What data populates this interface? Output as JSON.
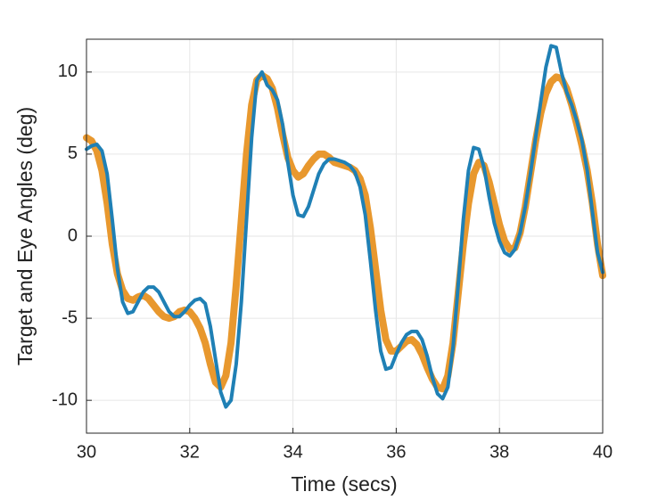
{
  "chart_data": {
    "type": "line",
    "xlabel": "Time (secs)",
    "ylabel": "Target and Eye Angles (deg)",
    "x": [
      30.0,
      30.1,
      30.2,
      30.3,
      30.4,
      30.5,
      30.6,
      30.7,
      30.8,
      30.9,
      31.0,
      31.1,
      31.2,
      31.3,
      31.4,
      31.5,
      31.6,
      31.7,
      31.8,
      31.9,
      32.0,
      32.1,
      32.2,
      32.3,
      32.4,
      32.5,
      32.6,
      32.7,
      32.8,
      32.9,
      33.0,
      33.1,
      33.2,
      33.3,
      33.4,
      33.5,
      33.6,
      33.7,
      33.8,
      33.9,
      34.0,
      34.1,
      34.2,
      34.3,
      34.4,
      34.5,
      34.6,
      34.7,
      34.8,
      34.9,
      35.0,
      35.1,
      35.2,
      35.3,
      35.4,
      35.5,
      35.6,
      35.7,
      35.8,
      35.9,
      36.0,
      36.1,
      36.2,
      36.3,
      36.4,
      36.5,
      36.6,
      36.7,
      36.8,
      36.9,
      37.0,
      37.1,
      37.2,
      37.3,
      37.4,
      37.5,
      37.6,
      37.7,
      37.8,
      37.9,
      38.0,
      38.1,
      38.2,
      38.3,
      38.4,
      38.5,
      38.6,
      38.7,
      38.8,
      38.9,
      39.0,
      39.1,
      39.2,
      39.3,
      39.4,
      39.5,
      39.6,
      39.7,
      39.8,
      39.9,
      40.0
    ],
    "series": [
      {
        "color": "#e8982e",
        "width": 8,
        "values": [
          6.0,
          5.8,
          5.2,
          4.0,
          2.0,
          -0.5,
          -2.3,
          -3.3,
          -3.8,
          -3.9,
          -3.7,
          -3.6,
          -3.8,
          -4.2,
          -4.6,
          -4.9,
          -5.0,
          -4.9,
          -4.6,
          -4.5,
          -4.6,
          -5.0,
          -5.6,
          -6.5,
          -7.8,
          -8.9,
          -9.2,
          -8.5,
          -6.5,
          -3.0,
          1.0,
          5.0,
          8.0,
          9.5,
          9.8,
          9.6,
          9.0,
          7.8,
          6.2,
          4.8,
          4.0,
          3.6,
          3.8,
          4.3,
          4.7,
          5.0,
          5.0,
          4.8,
          4.5,
          4.4,
          4.3,
          4.2,
          4.0,
          3.5,
          2.5,
          0.5,
          -2.0,
          -4.5,
          -6.3,
          -7.0,
          -7.0,
          -6.7,
          -6.4,
          -6.3,
          -6.6,
          -7.2,
          -8.0,
          -8.7,
          -9.2,
          -9.3,
          -8.5,
          -6.5,
          -3.5,
          -0.5,
          2.0,
          3.8,
          4.5,
          4.3,
          3.3,
          2.0,
          0.7,
          -0.3,
          -0.8,
          -0.7,
          0.2,
          1.8,
          3.8,
          5.8,
          7.5,
          8.7,
          9.4,
          9.7,
          9.6,
          9.0,
          8.0,
          6.8,
          5.5,
          4.0,
          2.0,
          -0.5,
          -2.4
        ]
      },
      {
        "color": "#1f80b5",
        "width": 4,
        "values": [
          5.3,
          5.5,
          5.6,
          5.2,
          3.8,
          1.0,
          -2.0,
          -4.0,
          -4.7,
          -4.6,
          -4.0,
          -3.4,
          -3.1,
          -3.1,
          -3.4,
          -4.0,
          -4.6,
          -4.9,
          -4.9,
          -4.6,
          -4.2,
          -3.9,
          -3.8,
          -4.1,
          -5.5,
          -7.5,
          -9.5,
          -10.4,
          -10.0,
          -7.8,
          -4.0,
          1.0,
          6.0,
          9.5,
          10.0,
          9.2,
          8.9,
          8.3,
          6.8,
          4.5,
          2.5,
          1.3,
          1.2,
          1.8,
          2.8,
          3.8,
          4.4,
          4.7,
          4.7,
          4.6,
          4.5,
          4.3,
          3.9,
          3.0,
          1.3,
          -1.5,
          -4.5,
          -7.0,
          -8.1,
          -8.0,
          -7.2,
          -6.5,
          -6.0,
          -5.8,
          -5.8,
          -6.3,
          -7.3,
          -8.6,
          -9.6,
          -9.9,
          -9.2,
          -6.8,
          -3.0,
          1.0,
          4.0,
          5.4,
          5.3,
          4.2,
          2.4,
          0.8,
          -0.3,
          -1.0,
          -1.2,
          -0.8,
          0.2,
          1.8,
          3.8,
          6.0,
          8.2,
          10.3,
          11.6,
          11.5,
          10.0,
          8.8,
          8.0,
          7.0,
          5.8,
          4.0,
          1.5,
          -1.0,
          -2.2
        ]
      }
    ],
    "xlim": [
      30,
      40
    ],
    "xticks": [
      30,
      32,
      34,
      36,
      38,
      40
    ],
    "ylim": [
      -12,
      12
    ],
    "yticks": [
      -10,
      -5,
      0,
      5,
      10
    ],
    "grid": true
  }
}
